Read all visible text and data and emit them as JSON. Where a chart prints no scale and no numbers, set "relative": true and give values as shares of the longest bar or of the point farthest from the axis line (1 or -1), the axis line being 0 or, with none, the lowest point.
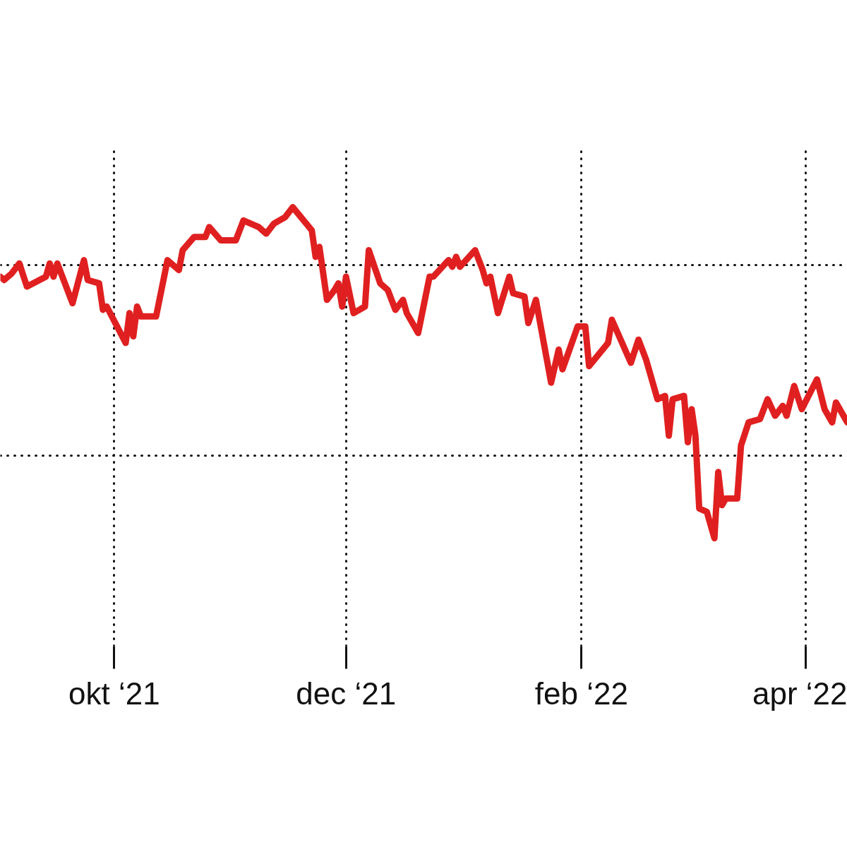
{
  "chart_data": {
    "type": "line",
    "relative": true,
    "grid": true,
    "line_style": "solid",
    "xlim": [
      "2021-09-01",
      "2022-04-12"
    ],
    "xticks": [
      {
        "value": "2021-10-01",
        "label": "okt ‘21"
      },
      {
        "value": "2021-12-01",
        "label": "dec ‘21"
      },
      {
        "value": "2022-02-01",
        "label": "feb ‘22"
      },
      {
        "value": "2022-04-01",
        "label": "apr ‘22"
      }
    ],
    "x": [
      "2021-09-01",
      "2021-09-02",
      "2021-09-04",
      "2021-09-06",
      "2021-09-08",
      "2021-09-13",
      "2021-09-14",
      "2021-09-15",
      "2021-09-16",
      "2021-09-17",
      "2021-09-20",
      "2021-09-23",
      "2021-09-24",
      "2021-09-27",
      "2021-09-28",
      "2021-09-29",
      "2021-10-04",
      "2021-10-05",
      "2021-10-06",
      "2021-10-07",
      "2021-10-08",
      "2021-10-12",
      "2021-10-15",
      "2021-10-18",
      "2021-10-19",
      "2021-10-22",
      "2021-10-25",
      "2021-10-26",
      "2021-10-29",
      "2021-11-02",
      "2021-11-04",
      "2021-11-08",
      "2021-11-10",
      "2021-11-12",
      "2021-11-15",
      "2021-11-17",
      "2021-11-22",
      "2021-11-23",
      "2021-11-24",
      "2021-11-26",
      "2021-11-28",
      "2021-11-29",
      "2021-11-30",
      "2021-12-01",
      "2021-12-03",
      "2021-12-06",
      "2021-12-07",
      "2021-12-10",
      "2021-12-12",
      "2021-12-14",
      "2021-12-16",
      "2021-12-17",
      "2021-12-20",
      "2021-12-23",
      "2021-12-24",
      "2021-12-28",
      "2021-12-29",
      "2021-12-30",
      "2021-12-31",
      "2022-01-04",
      "2022-01-06",
      "2022-01-07",
      "2022-01-08",
      "2022-01-10",
      "2022-01-13",
      "2022-01-14",
      "2022-01-17",
      "2022-01-18",
      "2022-01-20",
      "2022-01-24",
      "2022-01-26",
      "2022-01-27",
      "2022-01-31",
      "2022-02-02",
      "2022-02-03",
      "2022-02-08",
      "2022-02-09",
      "2022-02-14",
      "2022-02-16",
      "2022-02-18",
      "2022-02-21",
      "2022-02-23",
      "2022-02-24",
      "2022-02-25",
      "2022-02-28",
      "2022-03-01",
      "2022-03-02",
      "2022-03-03",
      "2022-03-04",
      "2022-03-06",
      "2022-03-08",
      "2022-03-09",
      "2022-03-10",
      "2022-03-11",
      "2022-03-14",
      "2022-03-15",
      "2022-03-17",
      "2022-03-20",
      "2022-03-22",
      "2022-03-24",
      "2022-03-26",
      "2022-03-27",
      "2022-03-29",
      "2022-03-31",
      "2022-04-04",
      "2022-04-06",
      "2022-04-08",
      "2022-04-09",
      "2022-04-12"
    ],
    "series": [
      {
        "color": "#e02020",
        "values": [
          0.79,
          0.78,
          0.8,
          0.83,
          0.76,
          0.79,
          0.83,
          0.79,
          0.83,
          0.8,
          0.71,
          0.84,
          0.78,
          0.77,
          0.69,
          0.7,
          0.59,
          0.68,
          0.61,
          0.7,
          0.67,
          0.67,
          0.84,
          0.81,
          0.87,
          0.91,
          0.91,
          0.94,
          0.9,
          0.9,
          0.96,
          0.94,
          0.92,
          0.95,
          0.97,
          1,
          0.93,
          0.85,
          0.88,
          0.72,
          0.75,
          0.77,
          0.7,
          0.79,
          0.68,
          0.7,
          0.87,
          0.77,
          0.75,
          0.69,
          0.72,
          0.68,
          0.62,
          0.79,
          0.79,
          0.84,
          0.82,
          0.85,
          0.82,
          0.87,
          0.81,
          0.77,
          0.79,
          0.68,
          0.79,
          0.74,
          0.73,
          0.65,
          0.72,
          0.47,
          0.57,
          0.51,
          0.64,
          0.64,
          0.52,
          0.59,
          0.66,
          0.53,
          0.6,
          0.54,
          0.42,
          0.43,
          0.31,
          0.42,
          0.43,
          0.29,
          0.39,
          0.31,
          0.09,
          0.08,
          0,
          0.2,
          0.1,
          0.12,
          0.12,
          0.28,
          0.35,
          0.36,
          0.42,
          0.37,
          0.4,
          0.37,
          0.46,
          0.39,
          0.48,
          0.39,
          0.35,
          0.41,
          0.35
        ]
      }
    ]
  }
}
